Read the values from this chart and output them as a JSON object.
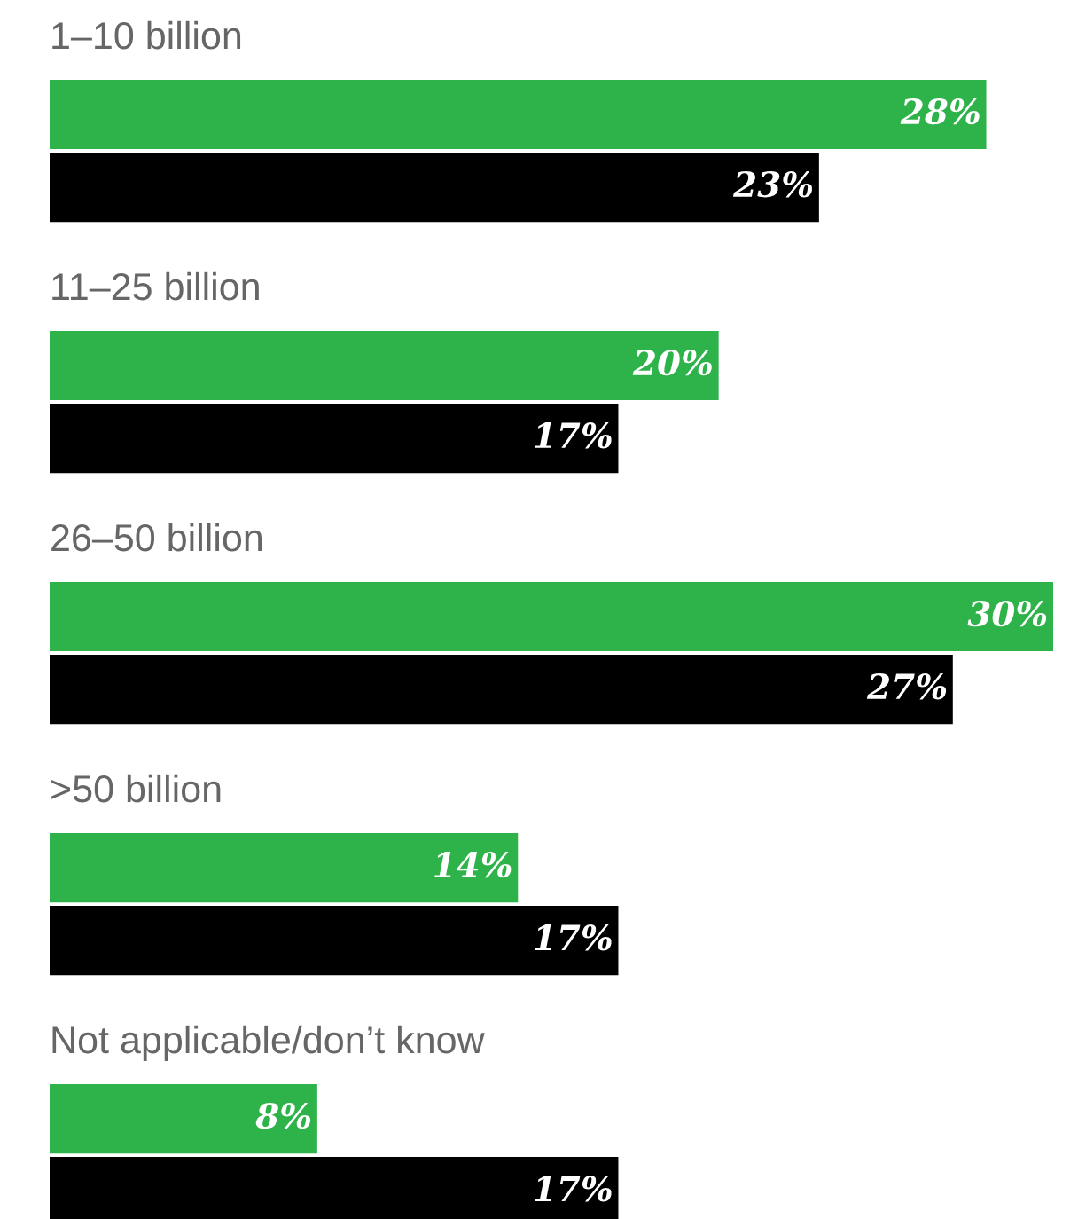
{
  "chart_data": {
    "type": "bar",
    "orientation": "horizontal",
    "categories": [
      "1–10 billion",
      "11–25 billion",
      "26–50 billion",
      ">50 billion",
      "Not applicable/don’t know"
    ],
    "series": [
      {
        "color": "#2db34a",
        "values": [
          28,
          20,
          30,
          14,
          8
        ],
        "value_labels": [
          "28%",
          "20%",
          "30%",
          "14%",
          "8%"
        ]
      },
      {
        "color": "#000000",
        "values": [
          23,
          17,
          27,
          17,
          17
        ],
        "value_labels": [
          "23%",
          "17%",
          "27%",
          "17%",
          "17%"
        ]
      }
    ]
  }
}
